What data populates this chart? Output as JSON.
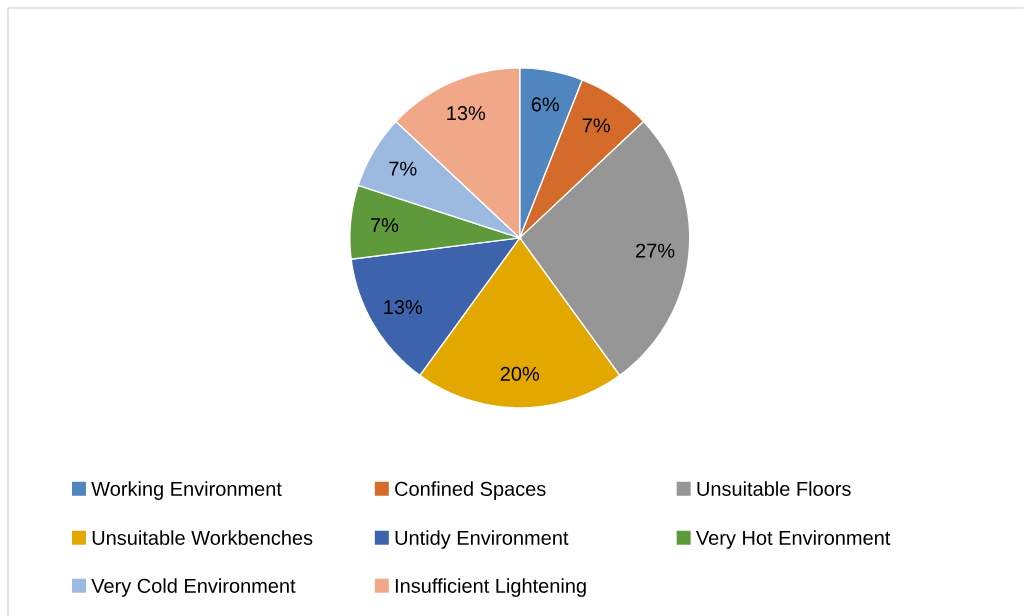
{
  "chart_data": {
    "type": "pie",
    "categories": [
      "Working Environment",
      "Confined Spaces",
      "Unsuitable Floors",
      "Unsuitable Workbenches",
      "Untidy Environment",
      "Very Hot Environment",
      "Very Cold Environment",
      "Insufficient Lightening"
    ],
    "values": [
      6,
      7,
      27,
      20,
      13,
      7,
      7,
      13
    ],
    "value_labels": [
      "6%",
      "7%",
      "27%",
      "20%",
      "13%",
      "7%",
      "7%",
      "13%"
    ],
    "colors": [
      "#4f86c0",
      "#d46b2a",
      "#969696",
      "#e3a800",
      "#3d63ad",
      "#5e9a3c",
      "#9cb9e0",
      "#f1a889"
    ],
    "legend": "bottom"
  }
}
